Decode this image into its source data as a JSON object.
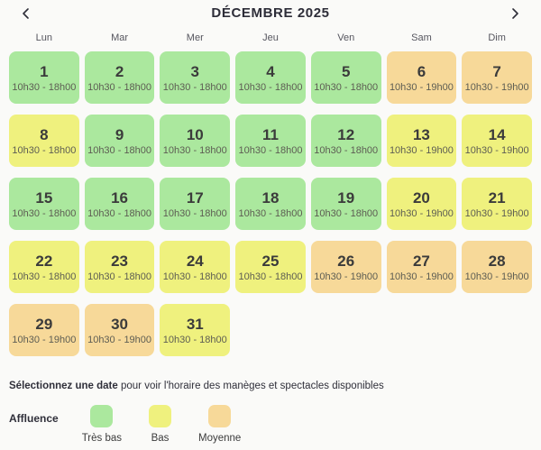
{
  "header": {
    "title": "DÉCEMBRE 2025"
  },
  "weekdays": [
    "Lun",
    "Mar",
    "Mer",
    "Jeu",
    "Ven",
    "Sam",
    "Dim"
  ],
  "calendar": {
    "days": [
      {
        "day": "1",
        "hours": "10h30 - 18h00",
        "level": "tres-bas"
      },
      {
        "day": "2",
        "hours": "10h30 - 18h00",
        "level": "tres-bas"
      },
      {
        "day": "3",
        "hours": "10h30 - 18h00",
        "level": "tres-bas"
      },
      {
        "day": "4",
        "hours": "10h30 - 18h00",
        "level": "tres-bas"
      },
      {
        "day": "5",
        "hours": "10h30 - 18h00",
        "level": "tres-bas"
      },
      {
        "day": "6",
        "hours": "10h30 - 19h00",
        "level": "moyenne"
      },
      {
        "day": "7",
        "hours": "10h30 - 19h00",
        "level": "moyenne"
      },
      {
        "day": "8",
        "hours": "10h30 - 18h00",
        "level": "bas"
      },
      {
        "day": "9",
        "hours": "10h30 - 18h00",
        "level": "tres-bas"
      },
      {
        "day": "10",
        "hours": "10h30 - 18h00",
        "level": "tres-bas"
      },
      {
        "day": "11",
        "hours": "10h30 - 18h00",
        "level": "tres-bas"
      },
      {
        "day": "12",
        "hours": "10h30 - 18h00",
        "level": "tres-bas"
      },
      {
        "day": "13",
        "hours": "10h30 - 19h00",
        "level": "bas"
      },
      {
        "day": "14",
        "hours": "10h30 - 19h00",
        "level": "bas"
      },
      {
        "day": "15",
        "hours": "10h30 - 18h00",
        "level": "tres-bas"
      },
      {
        "day": "16",
        "hours": "10h30 - 18h00",
        "level": "tres-bas"
      },
      {
        "day": "17",
        "hours": "10h30 - 18h00",
        "level": "tres-bas"
      },
      {
        "day": "18",
        "hours": "10h30 - 18h00",
        "level": "tres-bas"
      },
      {
        "day": "19",
        "hours": "10h30 - 18h00",
        "level": "tres-bas"
      },
      {
        "day": "20",
        "hours": "10h30 - 19h00",
        "level": "bas"
      },
      {
        "day": "21",
        "hours": "10h30 - 19h00",
        "level": "bas"
      },
      {
        "day": "22",
        "hours": "10h30 - 18h00",
        "level": "bas"
      },
      {
        "day": "23",
        "hours": "10h30 - 18h00",
        "level": "bas"
      },
      {
        "day": "24",
        "hours": "10h30 - 18h00",
        "level": "bas"
      },
      {
        "day": "25",
        "hours": "10h30 - 18h00",
        "level": "bas"
      },
      {
        "day": "26",
        "hours": "10h30 - 19h00",
        "level": "moyenne"
      },
      {
        "day": "27",
        "hours": "10h30 - 19h00",
        "level": "moyenne"
      },
      {
        "day": "28",
        "hours": "10h30 - 19h00",
        "level": "moyenne"
      },
      {
        "day": "29",
        "hours": "10h30 - 19h00",
        "level": "moyenne"
      },
      {
        "day": "30",
        "hours": "10h30 - 19h00",
        "level": "moyenne"
      },
      {
        "day": "31",
        "hours": "10h30 - 18h00",
        "level": "bas"
      }
    ]
  },
  "hint": {
    "bold": "Sélectionnez une date",
    "rest": " pour voir l'horaire des manèges et spectacles disponibles"
  },
  "legend": {
    "title": "Affluence",
    "items": [
      {
        "label": "Très bas",
        "level": "tres-bas"
      },
      {
        "label": "Bas",
        "level": "bas"
      },
      {
        "label": "Moyenne",
        "level": "moyenne"
      }
    ]
  },
  "colors": {
    "tres_bas": "#abe89e",
    "bas": "#eff17e",
    "moyenne": "#f7d999",
    "background": "#fafaf8"
  }
}
